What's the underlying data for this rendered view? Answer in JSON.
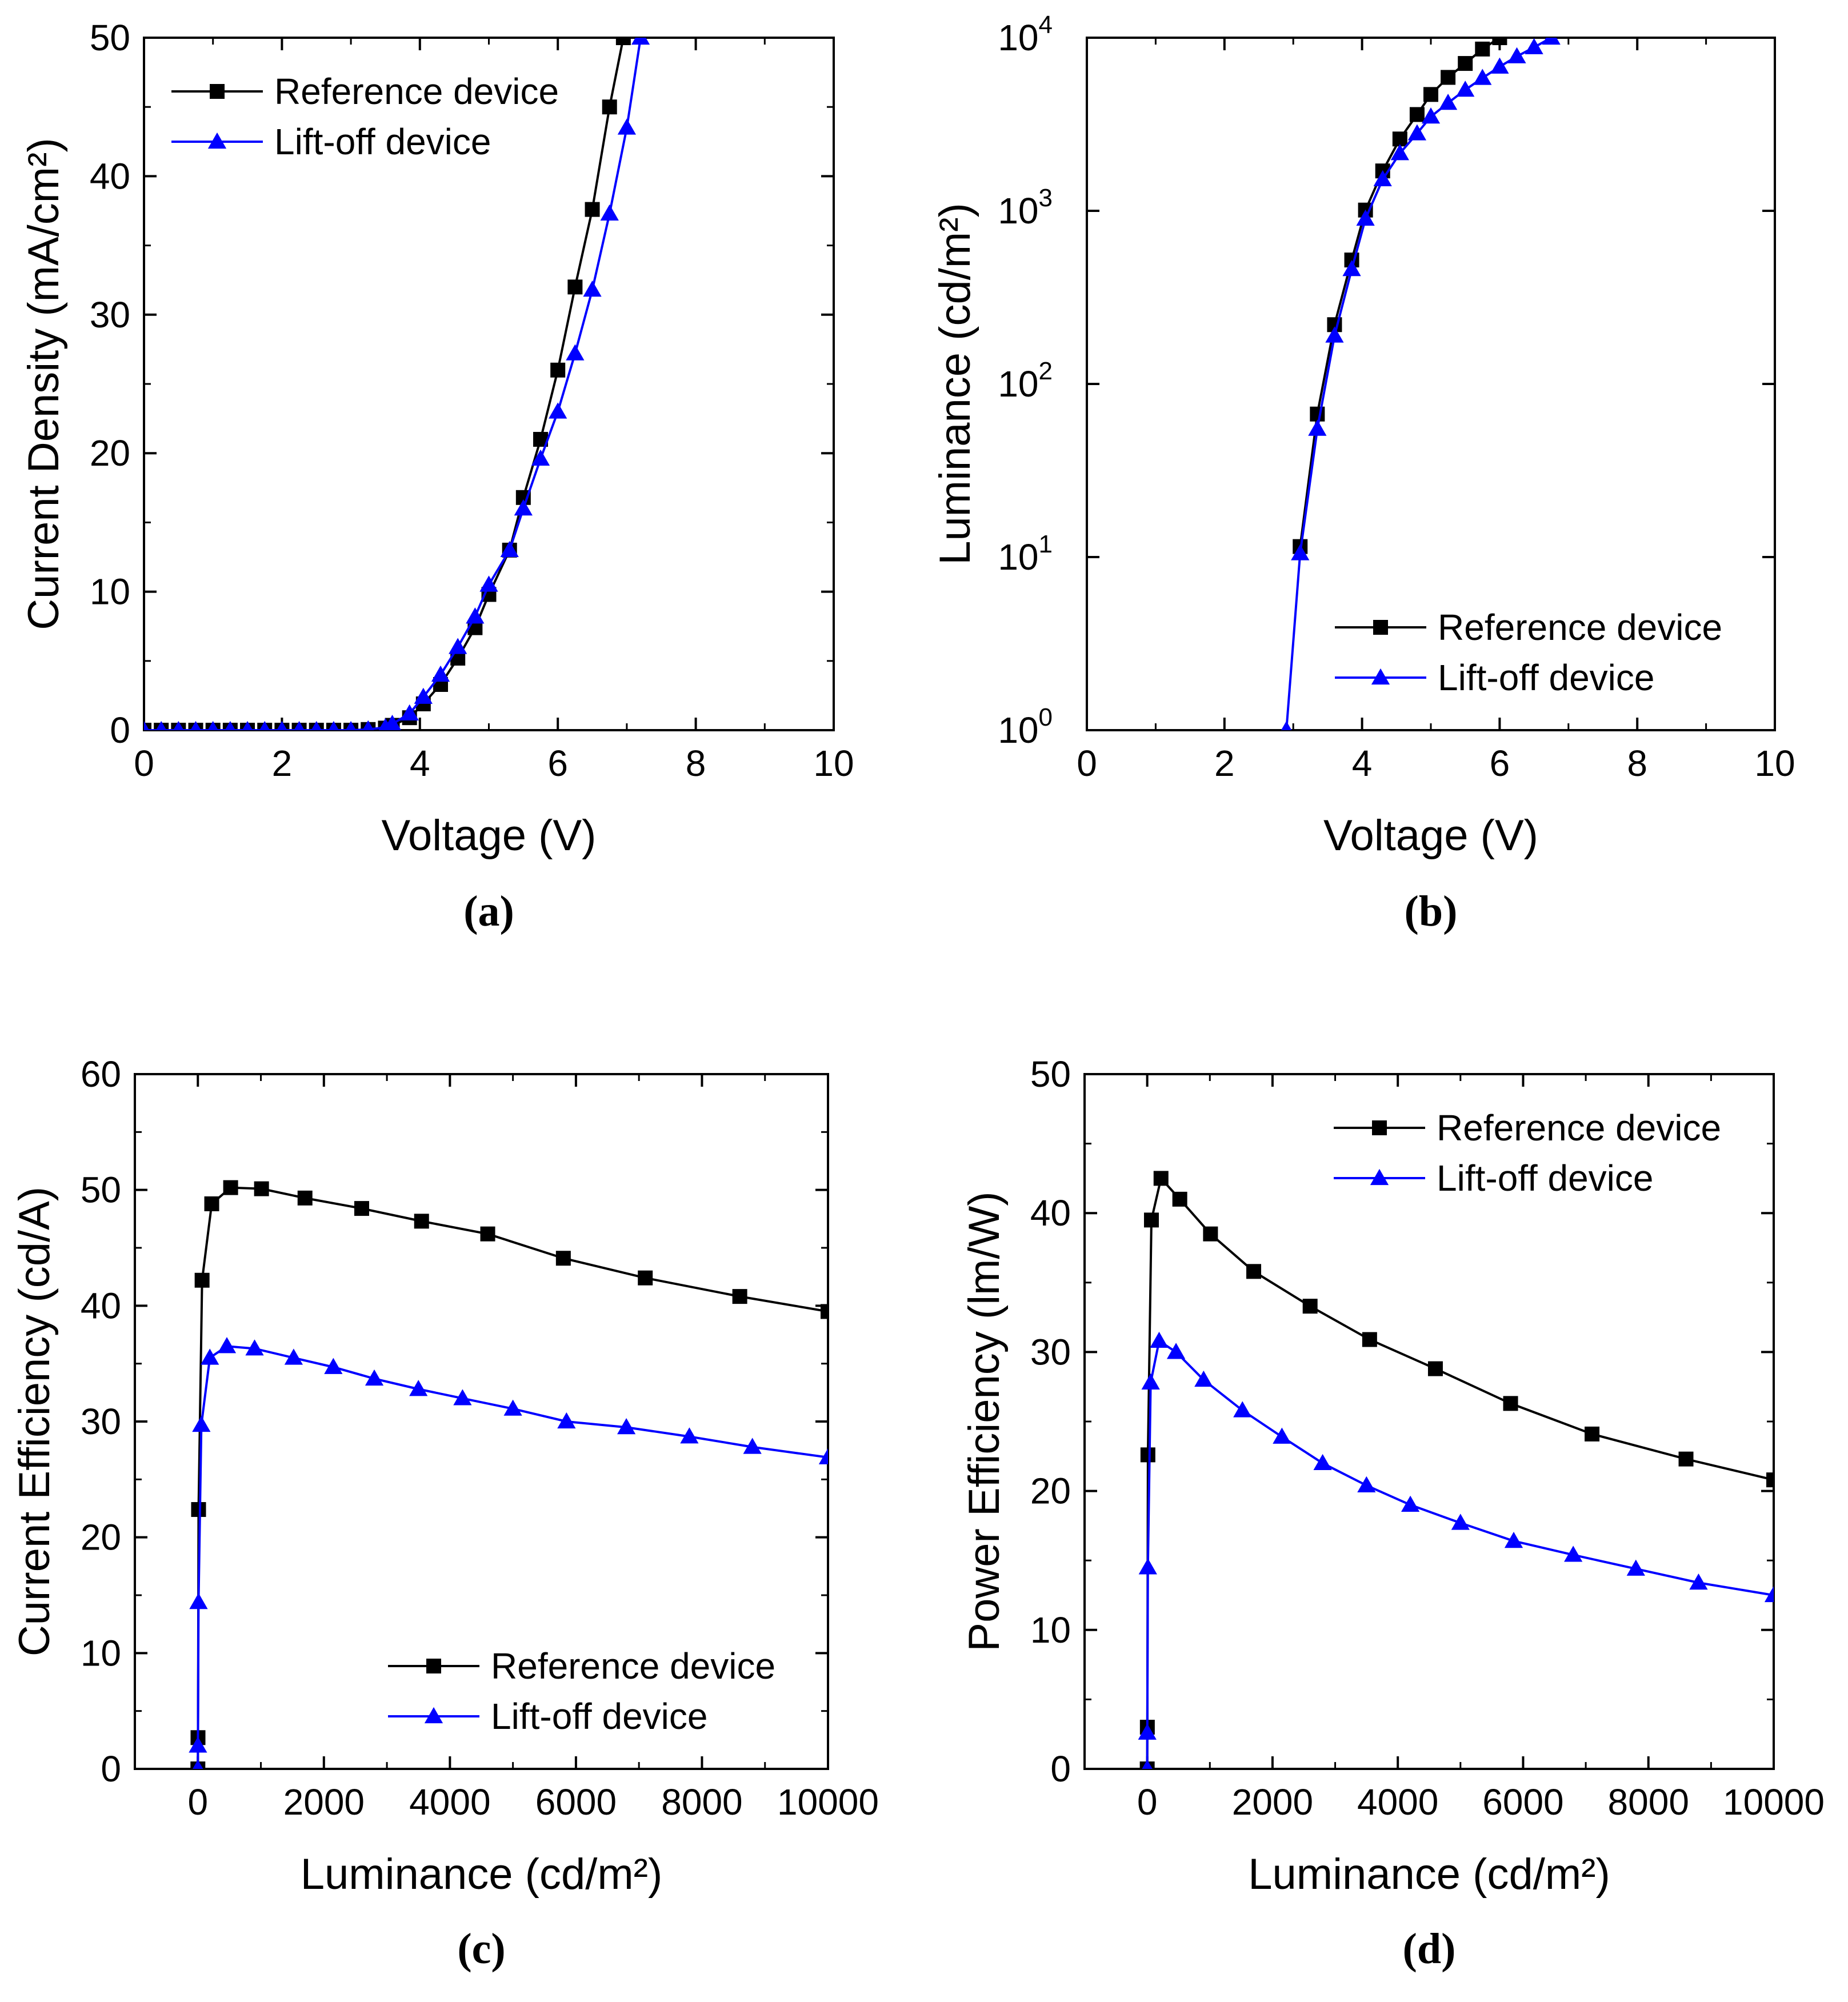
{
  "series_styles": {
    "reference": {
      "color": "#000000",
      "marker": "square-marker"
    },
    "liftoff": {
      "color": "#0000FF",
      "marker": "triangle-marker"
    }
  },
  "chart_data": [
    {
      "id": "a",
      "type": "line",
      "caption": "(a)",
      "xlabel": "Voltage (V)",
      "ylabel": "Current Density (mA/cm²)",
      "xscale": "linear",
      "yscale": "linear",
      "xlim": [
        0,
        10
      ],
      "ylim": [
        0,
        50
      ],
      "xticks": [
        0,
        2,
        4,
        6,
        8,
        10
      ],
      "yticks": [
        0,
        10,
        20,
        30,
        40,
        50
      ],
      "xtick_labels": [
        "0",
        "2",
        "4",
        "6",
        "8",
        "10"
      ],
      "ytick_labels": [
        "0",
        "10",
        "20",
        "30",
        "40",
        "50"
      ],
      "legend_position": "top-left",
      "series": [
        {
          "name": "Reference device",
          "style": "reference",
          "x": [
            0,
            0.25,
            0.5,
            0.75,
            1,
            1.25,
            1.5,
            1.75,
            2,
            2.25,
            2.5,
            2.75,
            3,
            3.25,
            3.5,
            3.6,
            3.85,
            4.05,
            4.3,
            4.55,
            4.8,
            5.0,
            5.3,
            5.5,
            5.75,
            6.0,
            6.25,
            6.5,
            6.75,
            6.95
          ],
          "y": [
            0,
            0,
            0,
            0,
            0,
            0,
            0,
            0,
            0,
            0,
            0,
            0,
            0,
            0.05,
            0.15,
            0.35,
            0.9,
            1.9,
            3.3,
            5.2,
            7.4,
            9.8,
            13.0,
            16.8,
            21.0,
            26.0,
            32.0,
            37.6,
            45.0,
            50.0
          ]
        },
        {
          "name": "Lift-off device",
          "style": "liftoff",
          "x": [
            0,
            0.25,
            0.5,
            0.75,
            1,
            1.25,
            1.5,
            1.75,
            2,
            2.25,
            2.5,
            2.75,
            3,
            3.25,
            3.5,
            3.6,
            3.85,
            4.05,
            4.3,
            4.55,
            4.8,
            5.0,
            5.3,
            5.5,
            5.75,
            6.0,
            6.25,
            6.5,
            6.75,
            7.0,
            7.2
          ],
          "y": [
            0,
            0,
            0,
            0,
            0,
            0,
            0,
            0,
            0,
            0,
            0,
            0,
            0,
            0.05,
            0.2,
            0.45,
            1.2,
            2.4,
            4.0,
            6.0,
            8.2,
            10.5,
            13.0,
            16.0,
            19.6,
            23.0,
            27.2,
            31.8,
            37.3,
            43.5,
            50.0
          ]
        }
      ]
    },
    {
      "id": "b",
      "type": "line",
      "caption": "(b)",
      "xlabel": "Voltage (V)",
      "ylabel": "Luminance (cd/m²)",
      "xscale": "linear",
      "yscale": "log",
      "xlim": [
        0,
        10
      ],
      "ylim": [
        1,
        10000
      ],
      "xticks": [
        0,
        2,
        4,
        6,
        8,
        10
      ],
      "yticks": [
        1,
        10,
        100,
        1000,
        10000
      ],
      "xtick_labels": [
        "0",
        "2",
        "4",
        "6",
        "8",
        "10"
      ],
      "ytick_base": "10",
      "ytick_exponents": [
        "0",
        "1",
        "2",
        "3",
        "4"
      ],
      "legend_position": "bottom-right",
      "series": [
        {
          "name": "Reference device",
          "style": "reference",
          "x": [
            3.1,
            3.35,
            3.6,
            3.85,
            4.05,
            4.3,
            4.55,
            4.8,
            5.0,
            5.25,
            5.5,
            5.75,
            6.0
          ],
          "y": [
            11.5,
            67,
            220,
            520,
            1010,
            1700,
            2600,
            3600,
            4700,
            5900,
            7100,
            8600,
            10000
          ]
        },
        {
          "name": "Lift-off device",
          "style": "liftoff",
          "x": [
            2.9,
            3.1,
            3.35,
            3.6,
            3.85,
            4.05,
            4.3,
            4.55,
            4.8,
            5.0,
            5.25,
            5.5,
            5.75,
            6.0,
            6.25,
            6.5,
            6.75
          ],
          "y": [
            1,
            10.5,
            55,
            190,
            460,
            900,
            1520,
            2150,
            2800,
            3500,
            4200,
            5000,
            5850,
            6800,
            7800,
            8800,
            10000
          ]
        }
      ]
    },
    {
      "id": "c",
      "type": "line",
      "caption": "(c)",
      "xlabel": "Luminance (cd/m²)",
      "ylabel": "Current Efficiency (cd/A)",
      "xscale": "linear",
      "yscale": "linear",
      "xlim": [
        -1000,
        10000
      ],
      "ylim": [
        0,
        60
      ],
      "xticks": [
        0,
        2000,
        4000,
        6000,
        8000,
        10000
      ],
      "yticks": [
        0,
        10,
        20,
        30,
        40,
        50,
        60
      ],
      "xtick_labels": [
        "0",
        "2000",
        "4000",
        "6000",
        "8000",
        "10000"
      ],
      "ytick_labels": [
        "0",
        "10",
        "20",
        "30",
        "40",
        "50",
        "60"
      ],
      "legend_position": "bottom-right",
      "series": [
        {
          "name": "Reference device",
          "style": "reference",
          "x": [
            0,
            2,
            11,
            67,
            220,
            520,
            1010,
            1700,
            2600,
            3550,
            4600,
            5800,
            7100,
            8600,
            10000
          ],
          "y": [
            0,
            2.7,
            22.4,
            42.2,
            48.8,
            50.2,
            50.1,
            49.3,
            48.4,
            47.3,
            46.2,
            44.1,
            42.4,
            40.8,
            39.5
          ]
        },
        {
          "name": "Lift-off device",
          "style": "liftoff",
          "x": [
            0,
            1,
            10.5,
            55,
            190,
            460,
            900,
            1520,
            2150,
            2800,
            3500,
            4200,
            5000,
            5850,
            6800,
            7800,
            8800,
            10000
          ],
          "y": [
            0,
            2.0,
            14.4,
            29.7,
            35.5,
            36.5,
            36.3,
            35.5,
            34.7,
            33.7,
            32.8,
            32.0,
            31.1,
            30.0,
            29.5,
            28.7,
            27.8,
            26.9
          ]
        }
      ]
    },
    {
      "id": "d",
      "type": "line",
      "caption": "(d)",
      "xlabel": "Luminance (cd/m²)",
      "ylabel": "Power Efficiency (lm/W)",
      "xscale": "linear",
      "yscale": "linear",
      "xlim": [
        -1000,
        10000
      ],
      "ylim": [
        0,
        50
      ],
      "xticks": [
        0,
        2000,
        4000,
        6000,
        8000,
        10000
      ],
      "yticks": [
        0,
        10,
        20,
        30,
        40,
        50
      ],
      "xtick_labels": [
        "0",
        "2000",
        "4000",
        "6000",
        "8000",
        "10000"
      ],
      "ytick_labels": [
        "0",
        "10",
        "20",
        "30",
        "40",
        "50"
      ],
      "legend_position": "top-right",
      "series": [
        {
          "name": "Reference device",
          "style": "reference",
          "x": [
            0,
            2,
            11,
            67,
            220,
            520,
            1010,
            1700,
            2600,
            3550,
            4600,
            5800,
            7100,
            8600,
            10000
          ],
          "y": [
            0,
            3.0,
            22.6,
            39.5,
            42.5,
            41.0,
            38.5,
            35.8,
            33.3,
            30.9,
            28.8,
            26.3,
            24.1,
            22.3,
            20.8
          ]
        },
        {
          "name": "Lift-off device",
          "style": "liftoff",
          "x": [
            0,
            1,
            10.5,
            55,
            190,
            460,
            900,
            1520,
            2150,
            2800,
            3500,
            4200,
            5000,
            5850,
            6800,
            7800,
            8800,
            10000
          ],
          "y": [
            0,
            2.6,
            14.5,
            27.8,
            30.8,
            30.0,
            28.0,
            25.8,
            23.9,
            22.0,
            20.4,
            19.0,
            17.7,
            16.4,
            15.4,
            14.4,
            13.4,
            12.5
          ]
        }
      ]
    }
  ]
}
